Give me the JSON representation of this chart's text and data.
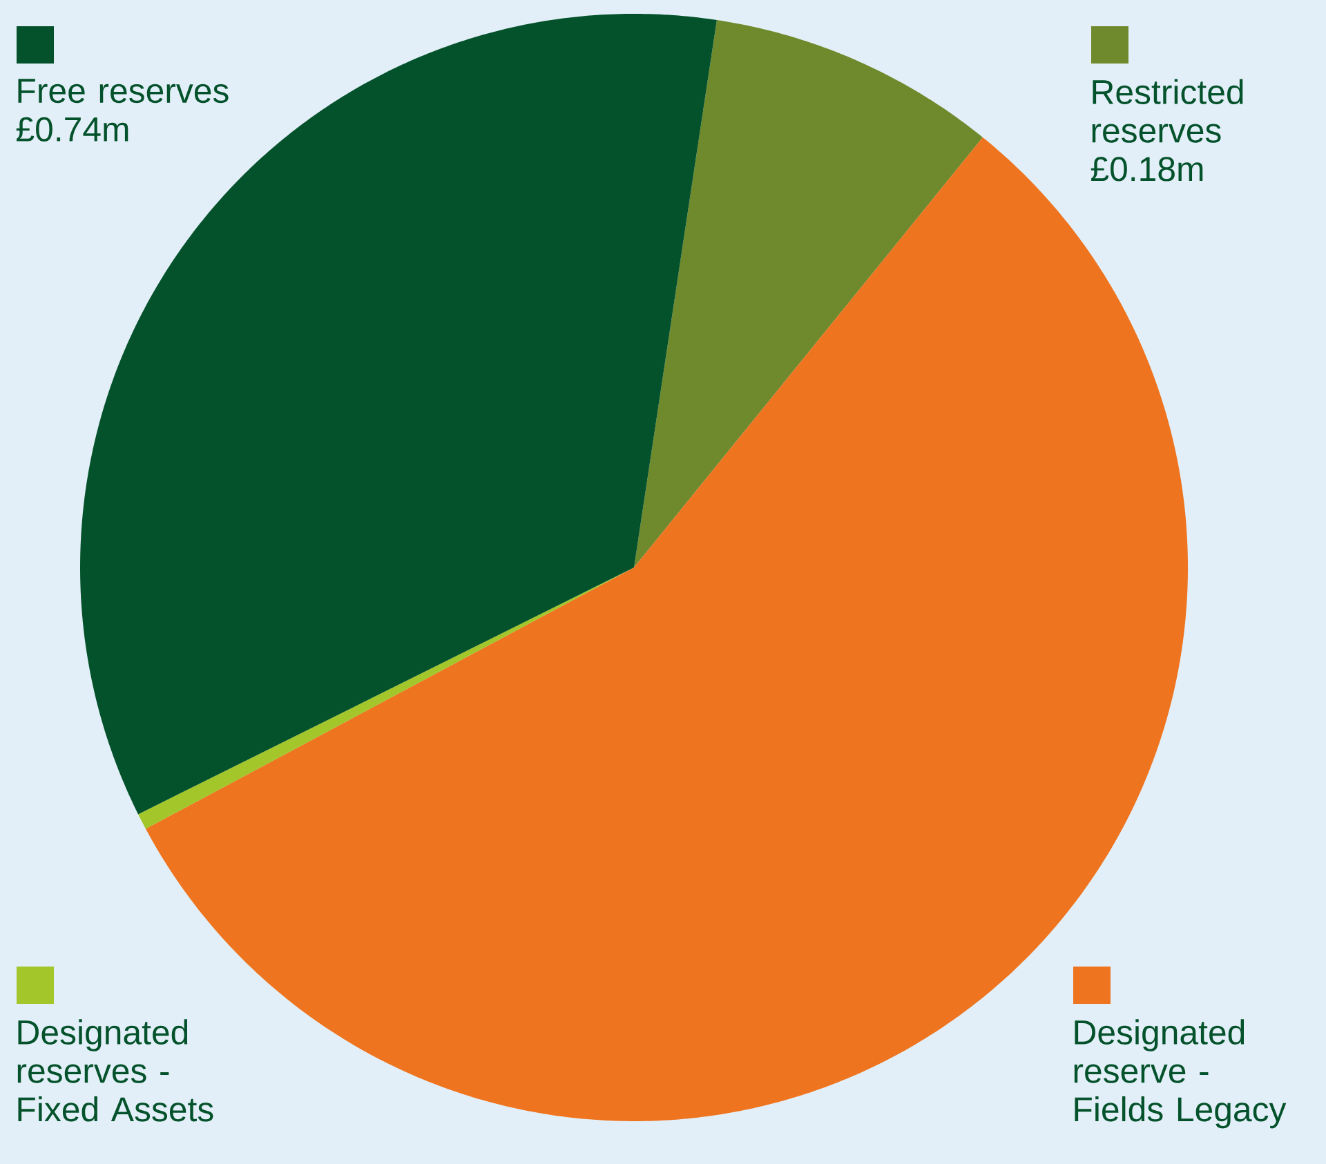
{
  "chart_data": {
    "type": "pie",
    "categories": [
      "Restricted reserves",
      "Designated reserve - Fields Legacy",
      "Designated reserves - Fixed Assets",
      "Free reserves"
    ],
    "values": [
      0.18,
      1.2,
      0.01,
      0.74
    ],
    "colors": [
      "#6f892d",
      "#ee741f",
      "#a3c62a",
      "#04522b"
    ],
    "value_labels": [
      "£0.18m",
      null,
      null,
      "£0.74m"
    ],
    "legend": "bottom left"
  }
}
